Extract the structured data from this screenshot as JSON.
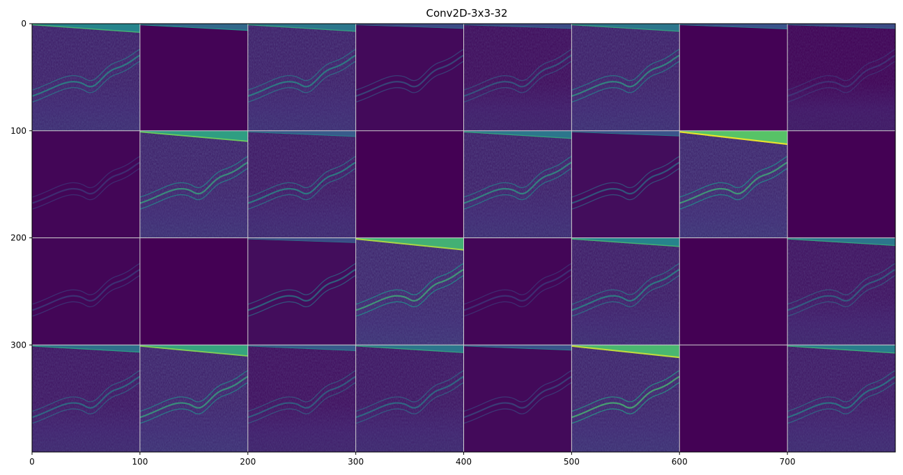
{
  "title": "Conv2D-3x3-32",
  "colormap": "viridis",
  "grid": {
    "rows": 4,
    "cols": 8,
    "tile_size": 100,
    "gridline_color": "#d0d0d0"
  },
  "x_ticks": [
    "0",
    "100",
    "200",
    "300",
    "400",
    "500",
    "600",
    "700"
  ],
  "y_ticks": [
    "0",
    "100",
    "200",
    "300"
  ],
  "background_color": "#440154",
  "tiles": [
    {
      "id": "r0c0",
      "intensity": 0.55,
      "top_band": 0.45,
      "curve": 0.45,
      "bottom_texture": true
    },
    {
      "id": "r0c1",
      "intensity": 0.05,
      "top_band": 0.25,
      "curve": 0.0,
      "bottom_texture": false
    },
    {
      "id": "r0c2",
      "intensity": 0.55,
      "top_band": 0.35,
      "curve": 0.45,
      "bottom_texture": true
    },
    {
      "id": "r0c3",
      "intensity": 0.15,
      "top_band": 0.05,
      "curve": 0.2,
      "bottom_texture": false
    },
    {
      "id": "r0c4",
      "intensity": 0.25,
      "top_band": 0.05,
      "curve": 0.25,
      "bottom_texture": true
    },
    {
      "id": "r0c5",
      "intensity": 0.55,
      "top_band": 0.35,
      "curve": 0.5,
      "bottom_texture": true
    },
    {
      "id": "r0c6",
      "intensity": 0.02,
      "top_band": 0.1,
      "curve": 0.0,
      "bottom_texture": false
    },
    {
      "id": "r0c7",
      "intensity": 0.1,
      "top_band": 0.05,
      "curve": 0.05,
      "bottom_texture": true
    },
    {
      "id": "r1c0",
      "intensity": 0.08,
      "top_band": 0.0,
      "curve": 0.05,
      "bottom_texture": false
    },
    {
      "id": "r1c1",
      "intensity": 0.6,
      "top_band": 0.65,
      "curve": 0.55,
      "bottom_texture": true
    },
    {
      "id": "r1c2",
      "intensity": 0.45,
      "top_band": 0.15,
      "curve": 0.45,
      "bottom_texture": true
    },
    {
      "id": "r1c3",
      "intensity": 0.0,
      "top_band": 0.0,
      "curve": 0.0,
      "bottom_texture": false
    },
    {
      "id": "r1c4",
      "intensity": 0.55,
      "top_band": 0.35,
      "curve": 0.5,
      "bottom_texture": true
    },
    {
      "id": "r1c5",
      "intensity": 0.2,
      "top_band": 0.1,
      "curve": 0.3,
      "bottom_texture": false
    },
    {
      "id": "r1c6",
      "intensity": 0.65,
      "top_band": 0.95,
      "curve": 0.6,
      "bottom_texture": true
    },
    {
      "id": "r1c7",
      "intensity": 0.0,
      "top_band": 0.0,
      "curve": 0.0,
      "bottom_texture": false
    },
    {
      "id": "r2c0",
      "intensity": 0.08,
      "top_band": 0.0,
      "curve": 0.08,
      "bottom_texture": false
    },
    {
      "id": "r2c1",
      "intensity": 0.0,
      "top_band": 0.0,
      "curve": 0.0,
      "bottom_texture": false
    },
    {
      "id": "r2c2",
      "intensity": 0.2,
      "top_band": 0.05,
      "curve": 0.35,
      "bottom_texture": false
    },
    {
      "id": "r2c3",
      "intensity": 0.65,
      "top_band": 0.8,
      "curve": 0.6,
      "bottom_texture": true
    },
    {
      "id": "r2c4",
      "intensity": 0.08,
      "top_band": 0.0,
      "curve": 0.06,
      "bottom_texture": false
    },
    {
      "id": "r2c5",
      "intensity": 0.5,
      "top_band": 0.45,
      "curve": 0.45,
      "bottom_texture": true
    },
    {
      "id": "r2c6",
      "intensity": 0.0,
      "top_band": 0.0,
      "curve": 0.0,
      "bottom_texture": false
    },
    {
      "id": "r2c7",
      "intensity": 0.35,
      "top_band": 0.35,
      "curve": 0.3,
      "bottom_texture": true
    },
    {
      "id": "r3c0",
      "intensity": 0.4,
      "top_band": 0.3,
      "curve": 0.35,
      "bottom_texture": true
    },
    {
      "id": "r3c1",
      "intensity": 0.6,
      "top_band": 0.7,
      "curve": 0.55,
      "bottom_texture": true
    },
    {
      "id": "r3c2",
      "intensity": 0.3,
      "top_band": 0.15,
      "curve": 0.3,
      "bottom_texture": true
    },
    {
      "id": "r3c3",
      "intensity": 0.4,
      "top_band": 0.35,
      "curve": 0.35,
      "bottom_texture": true
    },
    {
      "id": "r3c4",
      "intensity": 0.15,
      "top_band": 0.1,
      "curve": 0.15,
      "bottom_texture": false
    },
    {
      "id": "r3c5",
      "intensity": 0.6,
      "top_band": 0.85,
      "curve": 0.65,
      "bottom_texture": true
    },
    {
      "id": "r3c6",
      "intensity": 0.02,
      "top_band": 0.0,
      "curve": 0.0,
      "bottom_texture": false
    },
    {
      "id": "r3c7",
      "intensity": 0.45,
      "top_band": 0.4,
      "curve": 0.4,
      "bottom_texture": true
    }
  ]
}
